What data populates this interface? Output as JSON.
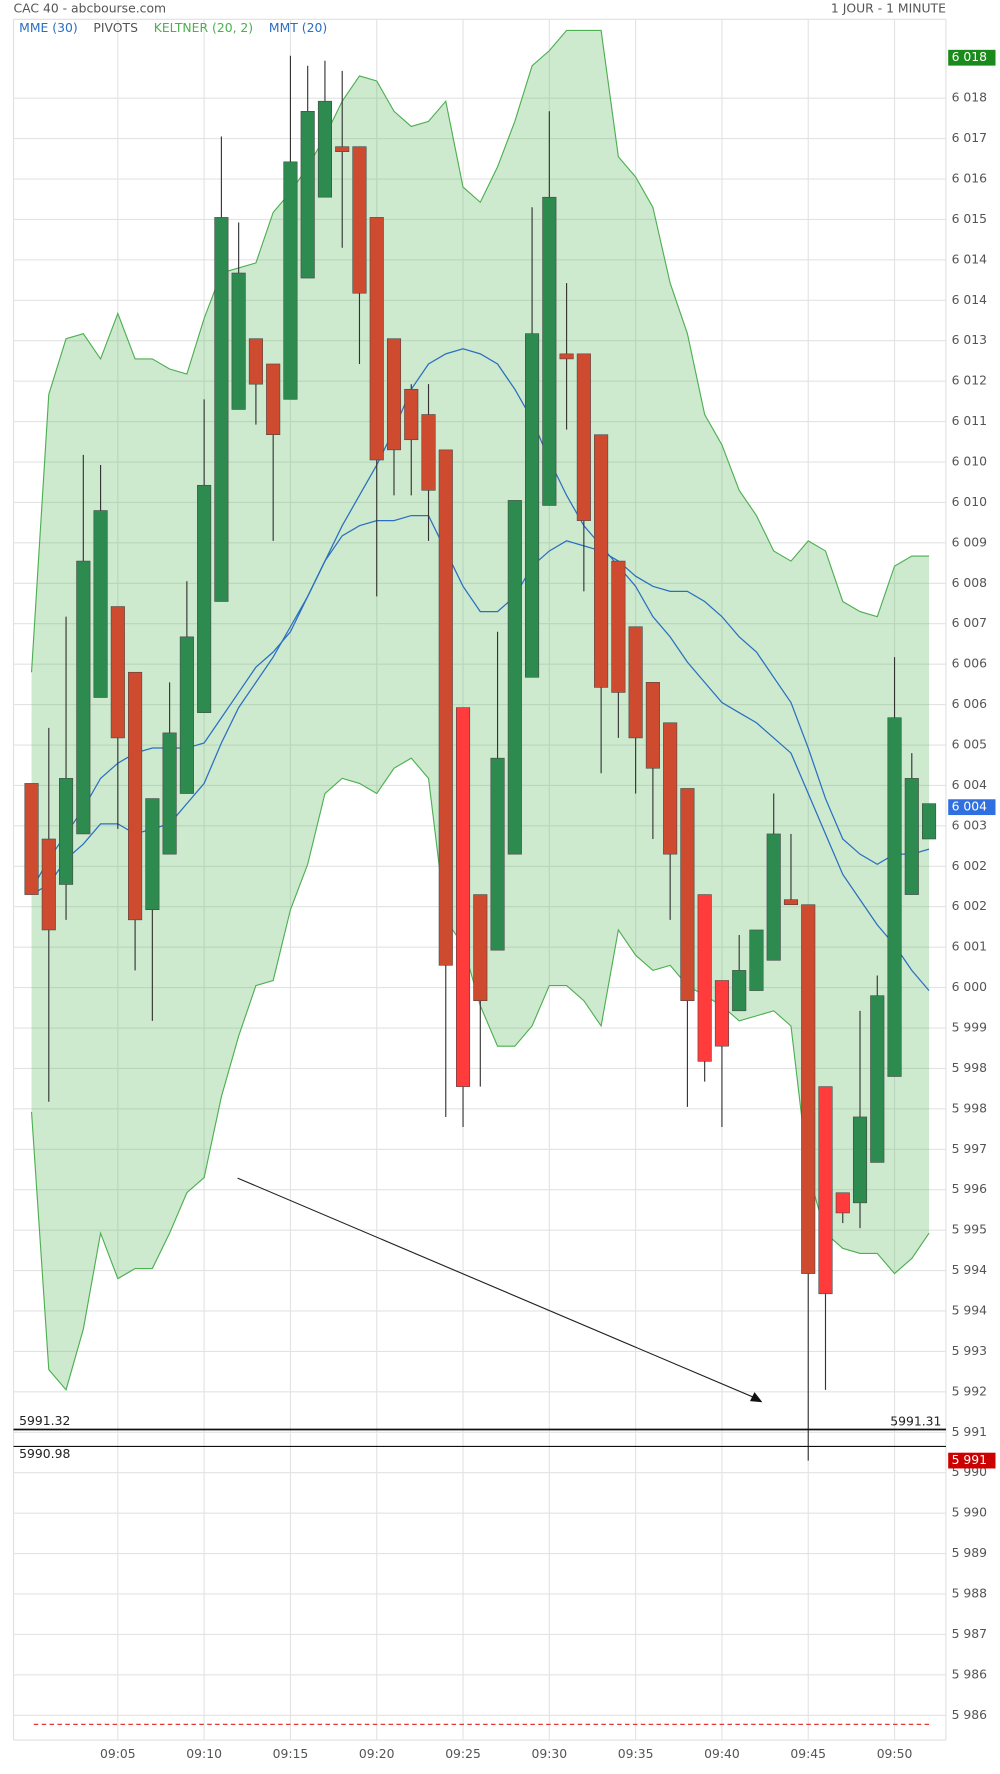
{
  "chart_data": {
    "type": "candlestick",
    "title": "CAC 40 - abcbourse.com",
    "subtitle": "1 JOUR - 1 MINUTE",
    "categories": [
      null,
      null,
      null,
      null,
      null,
      "09:05",
      null,
      null,
      null,
      null,
      "09:10",
      null,
      null,
      null,
      null,
      "09:15",
      null,
      null,
      null,
      null,
      "09:20",
      null,
      null,
      null,
      null,
      "09:25",
      null,
      null,
      null,
      null,
      "09:30",
      null,
      null,
      null,
      null,
      "09:35",
      null,
      null,
      null,
      null,
      "09:40",
      null,
      null,
      null,
      null,
      "09:45",
      null,
      null,
      null,
      null,
      "09:50",
      null,
      null
    ],
    "open": [
      6004.1,
      6003.0,
      6002.1,
      6003.1,
      6005.8,
      6007.6,
      6006.3,
      6001.6,
      6002.7,
      6003.9,
      6005.5,
      6007.7,
      6011.5,
      6012.9,
      6012.4,
      6011.7,
      6014.1,
      6015.7,
      6016.7,
      6016.7,
      6015.3,
      6012.9,
      6011.9,
      6011.4,
      6010.7,
      6005.6,
      6001.9,
      6000.8,
      6002.7,
      6006.2,
      6009.6,
      6012.6,
      6012.6,
      6011.0,
      6008.5,
      6007.2,
      6006.1,
      6005.3,
      6004.0,
      6001.9,
      6000.2,
      5999.6,
      6000.0,
      6000.6,
      6001.8,
      6001.7,
      5998.1,
      5996.0,
      5995.8,
      5996.6,
      5998.3,
      6001.9,
      6003.0
    ],
    "high": [
      6004.1,
      6005.2,
      6007.4,
      6010.6,
      6010.4,
      6007.6,
      6006.3,
      6003.8,
      6006.1,
      6008.1,
      6011.7,
      6016.9,
      6015.2,
      6012.9,
      6012.4,
      6018.5,
      6018.3,
      6018.4,
      6018.2,
      6016.7,
      6015.3,
      6012.9,
      6012.0,
      6012.0,
      6010.7,
      6005.6,
      6001.9,
      6007.1,
      6009.7,
      6015.5,
      6017.4,
      6014.0,
      6012.6,
      6011.0,
      6008.5,
      6007.2,
      6006.1,
      6005.3,
      6004.0,
      6001.9,
      6000.2,
      6001.1,
      6001.2,
      6003.9,
      6003.1,
      6001.7,
      5998.1,
      5996.0,
      5999.6,
      6000.3,
      6006.6,
      6004.7,
      6003.7
    ],
    "low": [
      6001.9,
      5997.8,
      6001.4,
      6003.1,
      6005.8,
      6003.2,
      6000.4,
      5999.4,
      6002.7,
      6003.9,
      6005.5,
      6007.7,
      6011.5,
      6011.2,
      6008.9,
      6011.7,
      6014.1,
      6015.7,
      6014.7,
      6012.4,
      6007.8,
      6009.8,
      6009.8,
      6008.9,
      5997.5,
      5997.3,
      5998.1,
      6000.8,
      6002.7,
      6006.2,
      6009.6,
      6011.1,
      6007.9,
      6004.3,
      6005.0,
      6003.9,
      6003.0,
      6001.4,
      5997.7,
      5998.2,
      5997.3,
      5999.6,
      6000.0,
      6000.6,
      6001.7,
      5990.7,
      5992.1,
      5995.4,
      5995.3,
      5996.6,
      5998.3,
      6001.9,
      6003.0
    ],
    "close": [
      6001.9,
      6001.2,
      6004.2,
      6008.5,
      6009.5,
      6005.0,
      6001.4,
      6003.8,
      6005.1,
      6007.0,
      6010.0,
      6015.3,
      6014.2,
      6012.0,
      6011.0,
      6016.4,
      6017.4,
      6017.6,
      6016.6,
      6013.8,
      6010.5,
      6010.7,
      6010.9,
      6009.9,
      6000.5,
      5998.1,
      5999.8,
      6004.6,
      6009.7,
      6013.0,
      6015.7,
      6012.5,
      6009.3,
      6006.0,
      6005.9,
      6005.0,
      6004.4,
      6002.7,
      5999.8,
      5998.6,
      5998.9,
      6000.4,
      6001.2,
      6003.1,
      6001.7,
      5994.4,
      5994.0,
      5995.6,
      5997.5,
      5999.9,
      6005.4,
      6004.2,
      6003.7
    ],
    "colors": [
      "#cf4b2f",
      "#cf4b2f",
      "#2e8b4f",
      "#2e8b4f",
      "#2e8b4f",
      "#cf4b2f",
      "#cf4b2f",
      "#2e8b4f",
      "#2e8b4f",
      "#2e8b4f",
      "#2e8b4f",
      "#2e8b4f",
      "#2e8b4f",
      "#cf4b2f",
      "#cf4b2f",
      "#2e8b4f",
      "#2e8b4f",
      "#2e8b4f",
      "#cf4b2f",
      "#cf4b2f",
      "#cf4b2f",
      "#cf4b2f",
      "#cf4b2f",
      "#cf4b2f",
      "#cf4b2f",
      "#ff3b3b",
      "#cf4b2f",
      "#2e8b4f",
      "#2e8b4f",
      "#2e8b4f",
      "#2e8b4f",
      "#cf4b2f",
      "#cf4b2f",
      "#cf4b2f",
      "#cf4b2f",
      "#cf4b2f",
      "#cf4b2f",
      "#cf4b2f",
      "#cf4b2f",
      "#ff3b3b",
      "#ff3b3b",
      "#2e8b4f",
      "#2e8b4f",
      "#2e8b4f",
      "#cf4b2f",
      "#cf4b2f",
      "#ff3b3b",
      "#ff3b3b",
      "#2e8b4f",
      "#2e8b4f",
      "#2e8b4f",
      "#2e8b4f",
      "#2e8b4f"
    ],
    "series": [
      {
        "name": "MME (30)",
        "type": "line",
        "color": "#2a6fc0",
        "values": [
          6002.0,
          6002.6,
          6003.1,
          6003.6,
          6004.2,
          6004.5,
          6004.7,
          6004.8,
          6004.8,
          6004.8,
          6004.9,
          6005.4,
          6005.9,
          6006.4,
          6006.7,
          6007.1,
          6007.8,
          6008.5,
          6009.0,
          6009.2,
          6009.3,
          6009.3,
          6009.4,
          6009.4,
          6008.7,
          6008.0,
          6007.5,
          6007.5,
          6007.8,
          6008.4,
          6008.7,
          6008.9,
          6008.8,
          6008.7,
          6008.5,
          6008.2,
          6008.0,
          6007.9,
          6007.9,
          6007.7,
          6007.4,
          6007.0,
          6006.7,
          6006.2,
          6005.7,
          6004.8,
          6003.8,
          6003.0,
          6002.7,
          6002.5,
          6002.7,
          6002.7,
          6002.8
        ]
      },
      {
        "name": "PIVOTS",
        "type": "levels",
        "color": "#555555",
        "levels": [
          {
            "value": 5991.32,
            "label": "5991.32",
            "side": "left"
          },
          {
            "value": 5991.31,
            "label": "5991.31",
            "side": "right"
          },
          {
            "value": 5990.98,
            "label": "5990.98",
            "side": "left"
          }
        ]
      },
      {
        "name": "KELTNER (20, 2)",
        "type": "band",
        "color": "#4caf50",
        "upper": [
          6006.3,
          6011.8,
          6012.9,
          6013.0,
          6012.5,
          6013.4,
          6012.5,
          6012.5,
          6012.3,
          6012.2,
          6013.3,
          6014.2,
          6014.3,
          6014.4,
          6015.4,
          6015.8,
          6016.3,
          6016.9,
          6017.6,
          6018.1,
          6018.0,
          6017.4,
          6017.1,
          6017.2,
          6017.6,
          6015.9,
          6015.6,
          6016.3,
          6017.2,
          6018.3,
          6018.6,
          6019.0,
          6019.0,
          6019.0,
          6016.5,
          6016.1,
          6015.5,
          6014.0,
          6013.0,
          6011.4,
          6010.8,
          6009.9,
          6009.4,
          6008.7,
          6008.5,
          6008.9,
          6008.7,
          6007.7,
          6007.5,
          6007.4,
          6008.4,
          6008.6,
          6008.6
        ],
        "lower": [
          5997.6,
          5992.5,
          5992.1,
          5993.3,
          5995.2,
          5994.3,
          5994.5,
          5994.5,
          5995.2,
          5996.0,
          5996.3,
          5997.9,
          5999.1,
          6000.1,
          6000.2,
          6001.6,
          6002.5,
          6003.9,
          6004.2,
          6004.1,
          6003.9,
          6004.4,
          6004.6,
          6004.2,
          6001.4,
          6000.9,
          5999.7,
          5998.9,
          5998.9,
          5999.3,
          6000.1,
          6000.1,
          5999.8,
          5999.3,
          6001.2,
          6000.7,
          6000.4,
          6000.5,
          6000.1,
          5999.9,
          5999.7,
          5999.4,
          5999.5,
          5999.6,
          5999.3,
          5996.4,
          5995.2,
          5994.9,
          5994.8,
          5994.8,
          5994.4,
          5994.7,
          5995.2
        ]
      },
      {
        "name": "MMT (20)",
        "type": "line",
        "color": "#2a6fc0",
        "values": [
          6001.9,
          6002.1,
          6002.6,
          6002.9,
          6003.3,
          6003.3,
          6003.1,
          6003.2,
          6003.3,
          6003.7,
          6004.1,
          6004.9,
          6005.6,
          6006.1,
          6006.6,
          6007.2,
          6007.8,
          6008.5,
          6009.2,
          6009.8,
          6010.4,
          6011.1,
          6011.9,
          6012.4,
          6012.6,
          6012.7,
          6012.6,
          6012.4,
          6011.9,
          6011.3,
          6010.5,
          6009.8,
          6009.2,
          6008.8,
          6008.4,
          6008.0,
          6007.4,
          6007.0,
          6006.5,
          6006.1,
          6005.7,
          6005.5,
          6005.3,
          6005.0,
          6004.7,
          6003.9,
          6003.1,
          6002.3,
          6001.8,
          6001.3,
          6000.9,
          6000.4,
          6000.0
        ]
      }
    ],
    "reference_line": {
      "value": 5985.48,
      "color": "#e53935",
      "dashed": true
    },
    "price_markers": [
      {
        "value": 6018.46,
        "label": "6 018",
        "color": "#1a8a1a"
      },
      {
        "value": 6003.63,
        "label": "6 004",
        "color": "#2f6fe0"
      },
      {
        "value": 5990.7,
        "label": "5 991",
        "color": "#cc0000"
      }
    ],
    "ylim": [
      5985.17,
      6019.22
    ],
    "yticks": [
      {
        "value": 6017.66,
        "label": "6 018"
      },
      {
        "value": 6016.86,
        "label": "6 017"
      },
      {
        "value": 6016.06,
        "label": "6 016"
      },
      {
        "value": 6015.26,
        "label": "6 015"
      },
      {
        "value": 6014.46,
        "label": "6 014"
      },
      {
        "value": 6013.66,
        "label": "6 014"
      },
      {
        "value": 6012.86,
        "label": "6 013"
      },
      {
        "value": 6012.06,
        "label": "6 012"
      },
      {
        "value": 6011.26,
        "label": "6 011"
      },
      {
        "value": 6010.46,
        "label": "6 010"
      },
      {
        "value": 6009.66,
        "label": "6 010"
      },
      {
        "value": 6008.86,
        "label": "6 009"
      },
      {
        "value": 6008.06,
        "label": "6 008"
      },
      {
        "value": 6007.26,
        "label": "6 007"
      },
      {
        "value": 6006.46,
        "label": "6 006"
      },
      {
        "value": 6005.66,
        "label": "6 006"
      },
      {
        "value": 6004.86,
        "label": "6 005"
      },
      {
        "value": 6004.06,
        "label": "6 004"
      },
      {
        "value": 6003.26,
        "label": "6 003"
      },
      {
        "value": 6002.46,
        "label": "6 002"
      },
      {
        "value": 6001.66,
        "label": "6 002"
      },
      {
        "value": 6000.86,
        "label": "6 001"
      },
      {
        "value": 6000.06,
        "label": "6 000"
      },
      {
        "value": 5999.26,
        "label": "5 999"
      },
      {
        "value": 5998.46,
        "label": "5 998"
      },
      {
        "value": 5997.66,
        "label": "5 998"
      },
      {
        "value": 5996.86,
        "label": "5 997"
      },
      {
        "value": 5996.06,
        "label": "5 996"
      },
      {
        "value": 5995.26,
        "label": "5 995"
      },
      {
        "value": 5994.46,
        "label": "5 994"
      },
      {
        "value": 5993.66,
        "label": "5 994"
      },
      {
        "value": 5992.86,
        "label": "5 993"
      },
      {
        "value": 5992.06,
        "label": "5 992"
      },
      {
        "value": 5991.26,
        "label": "5 991"
      },
      {
        "value": 5990.46,
        "label": "5 990"
      },
      {
        "value": 5989.66,
        "label": "5 990"
      },
      {
        "value": 5988.86,
        "label": "5 989"
      },
      {
        "value": 5988.06,
        "label": "5 988"
      },
      {
        "value": 5987.26,
        "label": "5 987"
      },
      {
        "value": 5986.46,
        "label": "5 986"
      },
      {
        "value": 5985.66,
        "label": "5 986"
      }
    ],
    "grid": true
  }
}
